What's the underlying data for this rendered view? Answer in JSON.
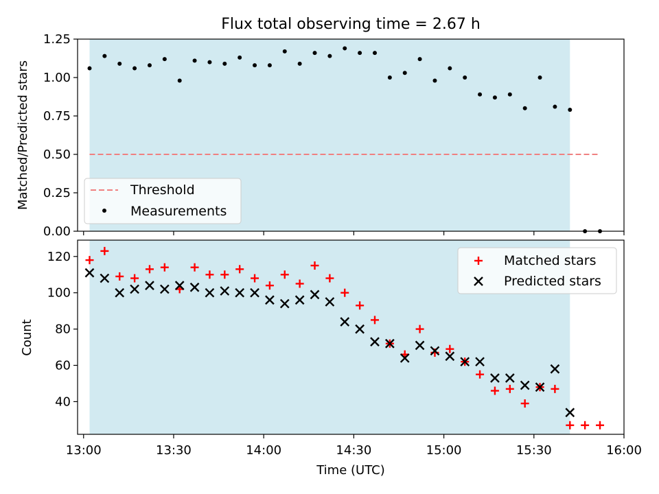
{
  "title": "Flux total observing time = 2.67 h",
  "colors": {
    "shade": "#add8e6",
    "threshold": "#f08080",
    "measurement": "#000000",
    "matched": "#ff0000",
    "predicted": "#000000"
  },
  "chart_data": [
    {
      "type": "scatter",
      "title": "Flux total observing time = 2.67 h",
      "xlabel": "",
      "ylabel": "Matched/Predicted stars",
      "ylim": [
        0,
        1.25
      ],
      "yticks": [
        "0.00",
        "0.25",
        "0.50",
        "0.75",
        "1.00",
        "1.25"
      ],
      "shaded_interval": [
        "13:02",
        "15:42"
      ],
      "threshold": {
        "name": "Threshold",
        "value": 0.5,
        "x_range": [
          "13:02",
          "15:52"
        ]
      },
      "legend_position": "lower-left",
      "series": [
        {
          "name": "Measurements",
          "x": [
            "13:02",
            "13:07",
            "13:12",
            "13:17",
            "13:22",
            "13:27",
            "13:32",
            "13:37",
            "13:42",
            "13:47",
            "13:52",
            "13:57",
            "14:02",
            "14:07",
            "14:12",
            "14:17",
            "14:22",
            "14:27",
            "14:32",
            "14:37",
            "14:42",
            "14:47",
            "14:52",
            "14:57",
            "15:02",
            "15:07",
            "15:12",
            "15:17",
            "15:22",
            "15:27",
            "15:32",
            "15:37",
            "15:42",
            "15:47",
            "15:52"
          ],
          "y": [
            1.06,
            1.14,
            1.09,
            1.06,
            1.08,
            1.12,
            0.98,
            1.11,
            1.1,
            1.09,
            1.13,
            1.08,
            1.08,
            1.17,
            1.09,
            1.16,
            1.14,
            1.19,
            1.16,
            1.16,
            1.0,
            1.03,
            1.12,
            0.98,
            1.06,
            1.0,
            0.89,
            0.87,
            0.89,
            0.8,
            1.0,
            0.81,
            0.79,
            0.0,
            0.0
          ]
        }
      ]
    },
    {
      "type": "scatter",
      "xlabel": "Time (UTC)",
      "ylabel": "Count",
      "xlim": [
        "12:58",
        "16:00"
      ],
      "xticks": [
        "13:00",
        "13:30",
        "14:00",
        "14:30",
        "15:00",
        "15:30",
        "16:00"
      ],
      "ylim": [
        22,
        129
      ],
      "yticks": [
        "40",
        "60",
        "80",
        "100",
        "120"
      ],
      "shaded_interval": [
        "13:02",
        "15:42"
      ],
      "legend_position": "upper-right",
      "series": [
        {
          "name": "Matched stars",
          "x": [
            "13:02",
            "13:07",
            "13:12",
            "13:17",
            "13:22",
            "13:27",
            "13:32",
            "13:37",
            "13:42",
            "13:47",
            "13:52",
            "13:57",
            "14:02",
            "14:07",
            "14:12",
            "14:17",
            "14:22",
            "14:27",
            "14:32",
            "14:37",
            "14:42",
            "14:47",
            "14:52",
            "14:57",
            "15:02",
            "15:07",
            "15:12",
            "15:17",
            "15:22",
            "15:27",
            "15:32",
            "15:37",
            "15:42",
            "15:47",
            "15:52"
          ],
          "y": [
            118,
            123,
            109,
            108,
            113,
            114,
            102,
            114,
            110,
            110,
            113,
            108,
            104,
            110,
            105,
            115,
            108,
            100,
            93,
            85,
            72,
            66,
            80,
            67,
            69,
            62,
            55,
            46,
            47,
            39,
            48,
            47,
            27,
            27,
            27
          ]
        },
        {
          "name": "Predicted stars",
          "x": [
            "13:02",
            "13:07",
            "13:12",
            "13:17",
            "13:22",
            "13:27",
            "13:32",
            "13:37",
            "13:42",
            "13:47",
            "13:52",
            "13:57",
            "14:02",
            "14:07",
            "14:12",
            "14:17",
            "14:22",
            "14:27",
            "14:32",
            "14:37",
            "14:42",
            "14:47",
            "14:52",
            "14:57",
            "15:02",
            "15:07",
            "15:12",
            "15:17",
            "15:22",
            "15:27",
            "15:32",
            "15:37",
            "15:42"
          ],
          "y": [
            111,
            108,
            100,
            102,
            104,
            102,
            104,
            103,
            100,
            101,
            100,
            100,
            96,
            94,
            96,
            99,
            95,
            84,
            80,
            73,
            72,
            64,
            71,
            68,
            65,
            62,
            62,
            53,
            53,
            49,
            48,
            58,
            34
          ]
        }
      ]
    }
  ]
}
